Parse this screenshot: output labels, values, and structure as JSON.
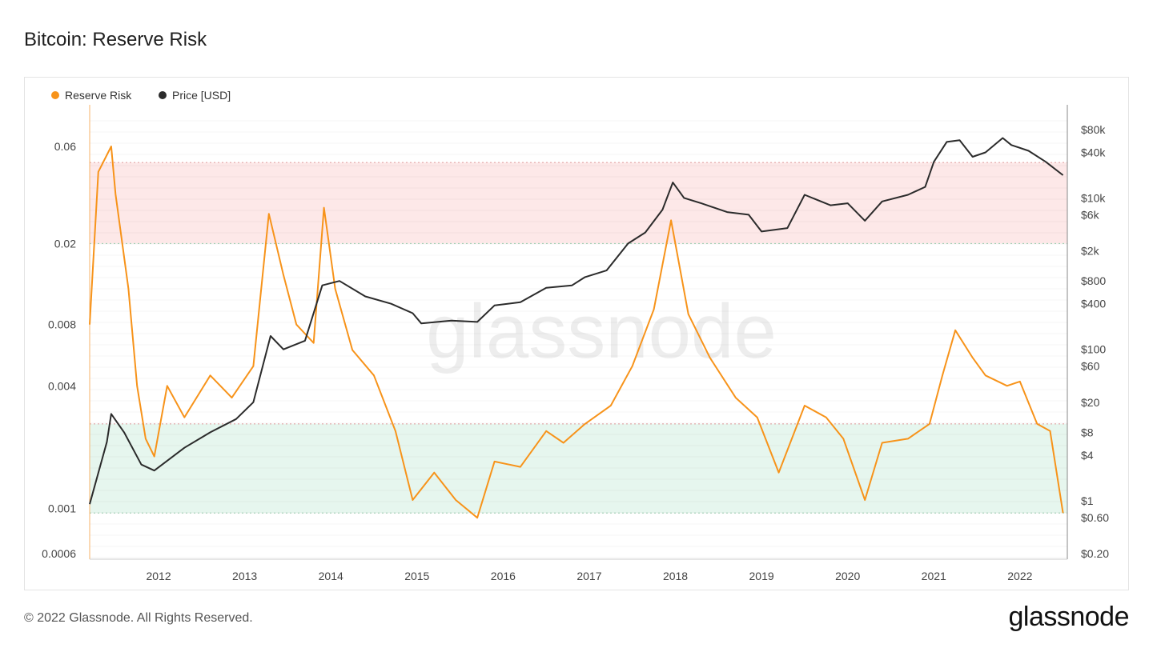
{
  "header": {
    "title": "Bitcoin: Reserve Risk"
  },
  "footer": {
    "copyright": "© 2022 Glassnode. All Rights Reserved.",
    "logo": "glassnode"
  },
  "watermark": "glassnode",
  "chart_data": {
    "type": "line",
    "title": "Bitcoin: Reserve Risk",
    "x_ticks": [
      "2012",
      "2013",
      "2014",
      "2015",
      "2016",
      "2017",
      "2018",
      "2019",
      "2020",
      "2021",
      "2022"
    ],
    "y_left": {
      "scale": "log",
      "ticks": [
        "0.06",
        "0.02",
        "0.008",
        "0.004",
        "0.001",
        "0.0006"
      ],
      "tick_values": [
        0.06,
        0.02,
        0.008,
        0.004,
        0.001,
        0.0006
      ]
    },
    "y_right": {
      "scale": "log",
      "ticks": [
        "$80k",
        "$40k",
        "$10k",
        "$6k",
        "$2k",
        "$800",
        "$400",
        "$100",
        "$60",
        "$20",
        "$8",
        "$4",
        "$1",
        "$0.60",
        "$0.20"
      ],
      "tick_values": [
        80000,
        40000,
        10000,
        6000,
        2000,
        800,
        400,
        100,
        60,
        20,
        8,
        4,
        1,
        0.6,
        0.2
      ]
    },
    "bands": [
      {
        "name": "high-risk",
        "from": 0.02,
        "to": 0.05,
        "color": "#fde8e8"
      },
      {
        "name": "low-risk",
        "from": 0.00095,
        "to": 0.0026,
        "color": "#e6f6ee"
      }
    ],
    "legend_position": "top-left",
    "grid": true,
    "series": [
      {
        "name": "Reserve Risk",
        "color": "#f7931a",
        "axis": "left",
        "x": [
          2011.2,
          2011.3,
          2011.45,
          2011.5,
          2011.65,
          2011.75,
          2011.85,
          2011.95,
          2012.1,
          2012.3,
          2012.6,
          2012.85,
          2013.1,
          2013.28,
          2013.45,
          2013.6,
          2013.8,
          2013.92,
          2014.05,
          2014.25,
          2014.5,
          2014.75,
          2014.95,
          2015.2,
          2015.45,
          2015.7,
          2015.9,
          2016.2,
          2016.5,
          2016.7,
          2016.95,
          2017.25,
          2017.5,
          2017.75,
          2017.95,
          2018.15,
          2018.4,
          2018.7,
          2018.95,
          2019.2,
          2019.5,
          2019.75,
          2019.95,
          2020.2,
          2020.4,
          2020.7,
          2020.95,
          2021.1,
          2021.25,
          2021.45,
          2021.6,
          2021.85,
          2022.0,
          2022.2,
          2022.35,
          2022.5
        ],
        "y": [
          0.008,
          0.045,
          0.06,
          0.035,
          0.012,
          0.004,
          0.0022,
          0.0018,
          0.004,
          0.0028,
          0.0045,
          0.0035,
          0.005,
          0.028,
          0.014,
          0.008,
          0.0065,
          0.03,
          0.012,
          0.006,
          0.0045,
          0.0024,
          0.0011,
          0.0015,
          0.0011,
          0.0009,
          0.0017,
          0.0016,
          0.0024,
          0.0021,
          0.0026,
          0.0032,
          0.005,
          0.0095,
          0.026,
          0.009,
          0.0055,
          0.0035,
          0.0028,
          0.0015,
          0.0032,
          0.0028,
          0.0022,
          0.0011,
          0.0021,
          0.0022,
          0.0026,
          0.0045,
          0.0075,
          0.0055,
          0.0045,
          0.004,
          0.0042,
          0.0026,
          0.0024,
          0.00095
        ]
      },
      {
        "name": "Price [USD]",
        "color": "#2b2b2b",
        "axis": "right",
        "x": [
          2011.2,
          2011.4,
          2011.45,
          2011.6,
          2011.8,
          2011.95,
          2012.3,
          2012.6,
          2012.9,
          2013.1,
          2013.3,
          2013.45,
          2013.7,
          2013.9,
          2014.1,
          2014.4,
          2014.7,
          2014.95,
          2015.05,
          2015.4,
          2015.7,
          2015.9,
          2016.2,
          2016.5,
          2016.8,
          2016.95,
          2017.2,
          2017.45,
          2017.65,
          2017.85,
          2017.97,
          2018.1,
          2018.3,
          2018.6,
          2018.85,
          2019.0,
          2019.3,
          2019.5,
          2019.8,
          2020.0,
          2020.2,
          2020.4,
          2020.7,
          2020.9,
          2021.0,
          2021.15,
          2021.3,
          2021.45,
          2021.6,
          2021.8,
          2021.9,
          2022.1,
          2022.3,
          2022.5
        ],
        "y": [
          0.9,
          6,
          14,
          8,
          3,
          2.5,
          5,
          8,
          12,
          20,
          150,
          100,
          130,
          700,
          800,
          500,
          400,
          300,
          220,
          240,
          230,
          380,
          420,
          650,
          700,
          900,
          1100,
          2500,
          3500,
          7000,
          16000,
          10000,
          8500,
          6500,
          6000,
          3600,
          4000,
          11000,
          8000,
          8500,
          5000,
          9000,
          11000,
          14000,
          30000,
          55000,
          58000,
          35000,
          40000,
          62000,
          50000,
          42000,
          30000,
          20000
        ]
      }
    ]
  }
}
